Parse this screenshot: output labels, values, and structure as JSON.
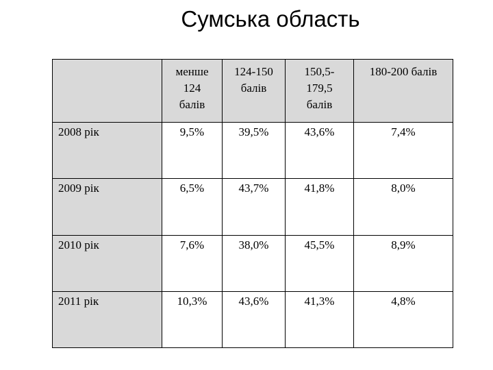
{
  "title": "Сумська область",
  "table": {
    "headers": [
      "менше 124 балів",
      "124-150 балів",
      "150,5-179,5 балів",
      "180-200 балів"
    ],
    "rows": [
      {
        "label": "2008 рік",
        "values": [
          "9,5%",
          "39,5%",
          "43,6%",
          "7,4%"
        ]
      },
      {
        "label": "2009 рік",
        "values": [
          "6,5%",
          "43,7%",
          "41,8%",
          "8,0%"
        ]
      },
      {
        "label": "2010 рік",
        "values": [
          "7,6%",
          "38,0%",
          "45,5%",
          "8,9%"
        ]
      },
      {
        "label": "2011 рік",
        "values": [
          "10,3%",
          "43,6%",
          "41,3%",
          "4,8%"
        ]
      }
    ]
  },
  "colors": {
    "header_fill": "#d9d9d9",
    "border": "#000000"
  }
}
